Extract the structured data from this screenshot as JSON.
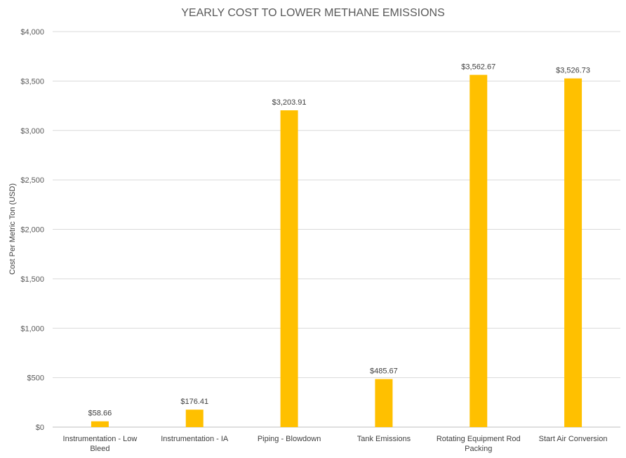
{
  "chart_data": {
    "type": "bar",
    "title": "YEARLY COST TO LOWER METHANE EMISSIONS",
    "xlabel": "",
    "ylabel": "Cost Per Metric  Ton (USD)",
    "categories": [
      [
        "Instrumentation - Low",
        "Bleed"
      ],
      [
        "Instrumentation - IA"
      ],
      [
        "Piping - Blowdown"
      ],
      [
        "Tank Emissions"
      ],
      [
        "Rotating Equipment Rod",
        "Packing"
      ],
      [
        "Start Air Conversion"
      ]
    ],
    "values": [
      58.66,
      176.41,
      3203.91,
      485.67,
      3562.67,
      3526.73
    ],
    "data_labels": [
      "$58.66",
      "$176.41",
      "$3,203.91",
      "$485.67",
      "$3,562.67",
      "$3,526.73"
    ],
    "ylim": [
      0,
      4000
    ],
    "yticks": [
      0,
      500,
      1000,
      1500,
      2000,
      2500,
      3000,
      3500,
      4000
    ],
    "ytick_labels": [
      "$0",
      "$500",
      "$1,000",
      "$1,500",
      "$2,000",
      "$2,500",
      "$3,000",
      "$3,500",
      "$4,000"
    ],
    "grid": true,
    "legend": "none",
    "bar_color": "#FFC000"
  }
}
